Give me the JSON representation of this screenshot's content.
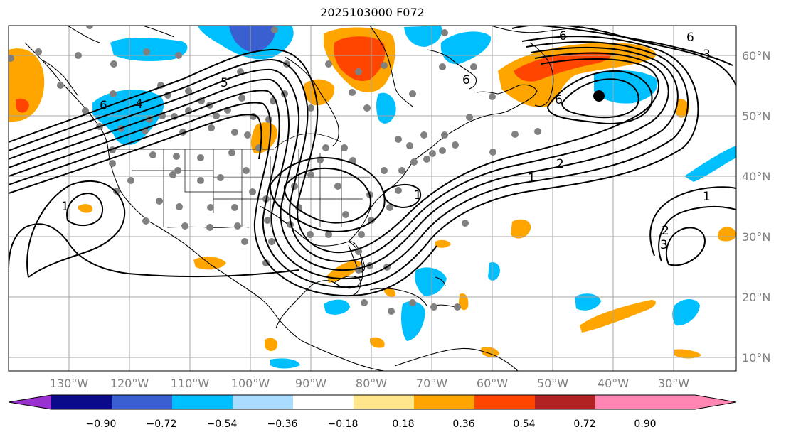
{
  "title": "2025103000 F072",
  "map": {
    "lon_labels": [
      "130°W",
      "120°W",
      "110°W",
      "100°W",
      "90°W",
      "80°W",
      "70°W",
      "60°W",
      "50°W",
      "40°W",
      "30°W"
    ],
    "lat_labels": [
      "60°N",
      "50°N",
      "40°N",
      "30°N",
      "20°N",
      "10°N"
    ],
    "contour_labels": [
      "6",
      "5",
      "4",
      "6",
      "6",
      "6",
      "3",
      "6",
      "2",
      "1",
      "1",
      "1",
      "1",
      "2",
      "3"
    ]
  },
  "colorbar": {
    "ticks": [
      "−0.90",
      "−0.72",
      "−0.54",
      "−0.36",
      "−0.18",
      "0.18",
      "0.36",
      "0.54",
      "0.72",
      "0.90"
    ],
    "colors": [
      "#9b30d0",
      "#0a0a8a",
      "#3a5fd0",
      "#00bfff",
      "#aadcff",
      "#ffffff",
      "#ffe68a",
      "#ffa500",
      "#ff4500",
      "#b22222",
      "#ff85b2"
    ]
  },
  "colors": {
    "light_blue": "#aadcff",
    "sky_blue": "#00bfff",
    "mid_blue": "#3a5fd0",
    "orange": "#ffa500",
    "red_orange": "#ff4500",
    "station_dot": "#808080"
  }
}
